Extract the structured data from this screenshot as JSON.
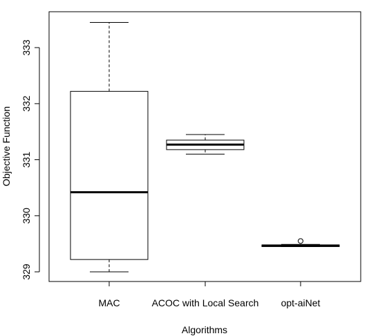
{
  "chart_data": {
    "type": "boxplot",
    "title": "",
    "xlabel": "Algorithms",
    "ylabel": "Objective Function",
    "ylim": [
      329,
      333
    ],
    "yticks": [
      329,
      330,
      331,
      332,
      333
    ],
    "grid": false,
    "categories": [
      "MAC",
      "ACOC with Local Search",
      "opt-aiNet"
    ],
    "boxes": [
      {
        "label": "MAC",
        "whisker_low": 329.0,
        "q1": 329.22,
        "median": 330.42,
        "q3": 332.22,
        "whisker_high": 333.45,
        "outliers": []
      },
      {
        "label": "ACOC with Local Search",
        "whisker_low": 331.1,
        "q1": 331.18,
        "median": 331.27,
        "q3": 331.35,
        "whisker_high": 331.45,
        "outliers": []
      },
      {
        "label": "opt-aiNet",
        "whisker_low": 329.45,
        "q1": 329.45,
        "median": 329.47,
        "q3": 329.48,
        "whisker_high": 329.49,
        "outliers": [
          329.55
        ]
      }
    ]
  }
}
